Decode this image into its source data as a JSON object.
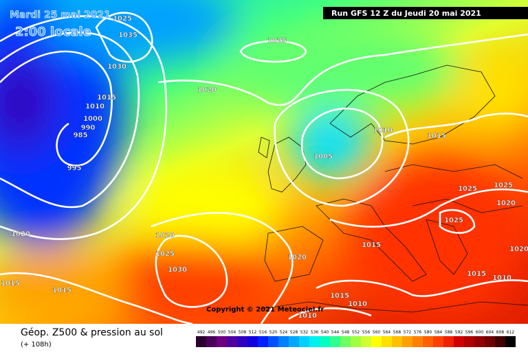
{
  "header": {
    "date": "Mardi 25 mai 2021",
    "time": "2:00 locale",
    "run": "Run GFS 12 Z du Jeudi 20 mai 2021"
  },
  "copyright": "Copyright © 2021 Meteociel.fr",
  "footer": {
    "title": "Géop. Z500 & pression au sol",
    "lead": "(+ 108h)"
  },
  "isobar_labels": [
    1025,
    1035,
    1030,
    1025,
    1020,
    1015,
    1010,
    1000,
    990,
    985,
    995,
    1010,
    1005,
    1015,
    1025,
    1025,
    1020,
    1025,
    1015,
    1020,
    1020,
    1025,
    1030,
    1020,
    1015,
    1015,
    1015,
    1010,
    1015,
    1010,
    1010,
    1020
  ],
  "colorbar": {
    "values": [
      492,
      496,
      500,
      504,
      508,
      512,
      516,
      520,
      524,
      528,
      532,
      536,
      540,
      544,
      548,
      552,
      556,
      560,
      564,
      568,
      572,
      576,
      580,
      584,
      588,
      592,
      596,
      600,
      604,
      608,
      612
    ],
    "colors": [
      "#2a0030",
      "#4b005a",
      "#6a0080",
      "#5000a0",
      "#3000c0",
      "#1000e0",
      "#0020ff",
      "#0050ff",
      "#0080ff",
      "#00a8ff",
      "#00d0ff",
      "#00f0f0",
      "#00ffc0",
      "#30ff90",
      "#70ff60",
      "#a0ff40",
      "#d0ff30",
      "#ffff00",
      "#ffe000",
      "#ffc000",
      "#ffa000",
      "#ff8000",
      "#ff6000",
      "#ff4000",
      "#f02000",
      "#d00000",
      "#b00000",
      "#900000",
      "#700000",
      "#400000",
      "#000000"
    ]
  }
}
